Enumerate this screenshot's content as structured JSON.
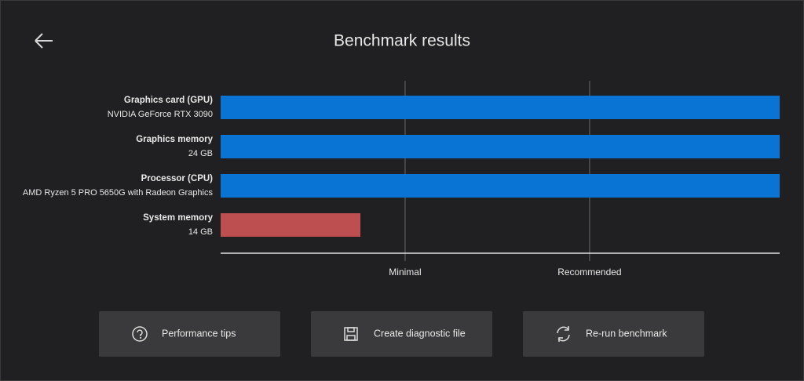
{
  "header": {
    "title": "Benchmark results"
  },
  "chart_data": {
    "type": "bar",
    "orientation": "horizontal",
    "categories": [
      "Graphics card (GPU)",
      "Graphics memory",
      "Processor (CPU)",
      "System memory"
    ],
    "details": [
      "NVIDIA GeForce RTX 3090",
      "24 GB",
      "AMD Ryzen 5 PRO 5650G with Radeon Graphics",
      "14 GB"
    ],
    "values": [
      100,
      100,
      100,
      25
    ],
    "colors": [
      "#0a74d4",
      "#0a74d4",
      "#0a74d4",
      "#bd4f50"
    ],
    "xlim": [
      0,
      100
    ],
    "xticks": [
      {
        "value": 33,
        "label": "Minimal"
      },
      {
        "value": 66,
        "label": "Recommended"
      }
    ]
  },
  "buttons": [
    {
      "label": "Performance tips"
    },
    {
      "label": "Create diagnostic file"
    },
    {
      "label": "Re-run benchmark"
    }
  ]
}
